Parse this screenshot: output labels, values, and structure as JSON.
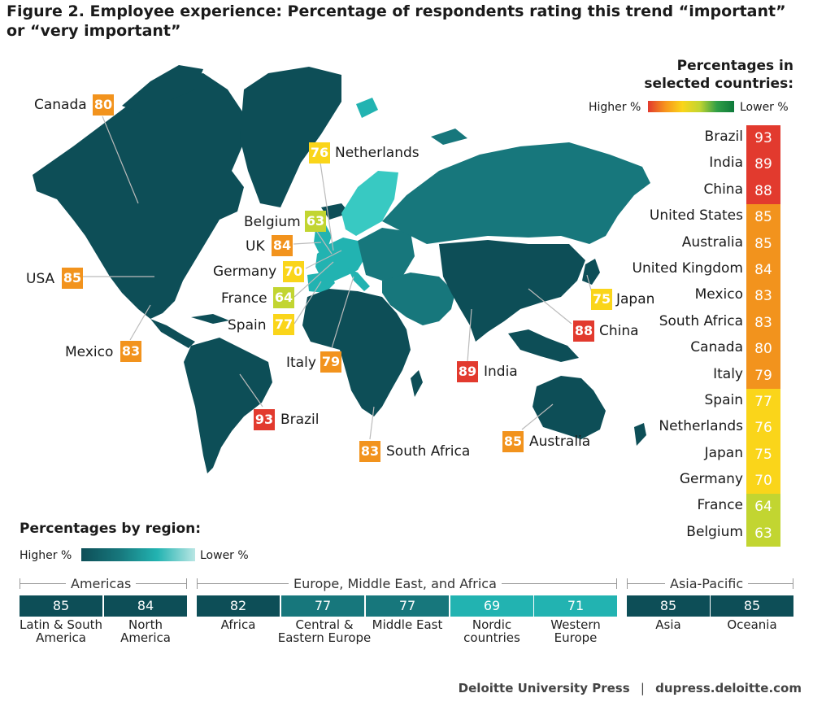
{
  "title_line1": "Figure 2. Employee experience: Percentage of respondents rating this trend “important”",
  "title_line2": " or “very important”",
  "selected": {
    "title_line1": "Percentages in",
    "title_line2": "selected countries:",
    "legend_high": "Higher %",
    "legend_low": "Lower %"
  },
  "region_section": {
    "title": "Percentages by region:",
    "legend_high": "Higher %",
    "legend_low": "Lower %"
  },
  "map_callouts": [
    {
      "name": "Canada",
      "value": "80"
    },
    {
      "name": "Netherlands",
      "value": "76"
    },
    {
      "name": "Belgium",
      "value": "63"
    },
    {
      "name": "UK",
      "value": "84"
    },
    {
      "name": "Germany",
      "value": "70"
    },
    {
      "name": "USA",
      "value": "85"
    },
    {
      "name": "France",
      "value": "64"
    },
    {
      "name": "Spain",
      "value": "77"
    },
    {
      "name": "Japan",
      "value": "75"
    },
    {
      "name": "China",
      "value": "88"
    },
    {
      "name": "Mexico",
      "value": "83"
    },
    {
      "name": "Italy",
      "value": "79"
    },
    {
      "name": "India",
      "value": "89"
    },
    {
      "name": "Brazil",
      "value": "93"
    },
    {
      "name": "South Africa",
      "value": "83"
    },
    {
      "name": "Australia",
      "value": "85"
    }
  ],
  "colors": {
    "high": "#e23a2e",
    "orange": "#f2931d",
    "yellow": "#fad51a",
    "lime": "#c2d531",
    "map_dark": "#0d4e57",
    "map_mid": "#17777c",
    "map_light": "#22b3b1",
    "map_lightest": "#38c9c2"
  },
  "chart_data": {
    "type": "table",
    "title": "Figure 2. Employee experience: Percentage of respondents rating this trend “important” or “very important”",
    "countries": {
      "categories": [
        "Brazil",
        "India",
        "China",
        "United States",
        "Australia",
        "United Kingdom",
        "Mexico",
        "South Africa",
        "Canada",
        "Italy",
        "Spain",
        "Netherlands",
        "Japan",
        "Germany",
        "France",
        "Belgium"
      ],
      "values": [
        93,
        89,
        88,
        85,
        85,
        84,
        83,
        83,
        80,
        79,
        77,
        76,
        75,
        70,
        64,
        63
      ]
    },
    "regions": [
      {
        "group": "Americas",
        "items": [
          {
            "name": "Latin & South America",
            "value": 85
          },
          {
            "name": "North America",
            "value": 84
          }
        ]
      },
      {
        "group": "Europe, Middle East, and Africa",
        "items": [
          {
            "name": "Africa",
            "value": 82
          },
          {
            "name": "Central & Eastern Europe",
            "value": 77
          },
          {
            "name": "Middle East",
            "value": 77
          },
          {
            "name": "Nordic countries",
            "value": 69
          },
          {
            "name": "Western Europe",
            "value": 71
          }
        ]
      },
      {
        "group": "Asia-Pacific",
        "items": [
          {
            "name": "Asia",
            "value": 85
          },
          {
            "name": "Oceania",
            "value": 85
          }
        ]
      }
    ]
  },
  "region_labels": {
    "latam_1": "Latin & South",
    "latam_2": "America",
    "na_1": "North",
    "na_2": "America",
    "africa": "Africa",
    "cee_1": "Central &",
    "cee_2": "Eastern Europe",
    "me": "Middle East",
    "nordic_1": "Nordic",
    "nordic_2": "countries",
    "we_1": "Western",
    "we_2": "Europe",
    "asia": "Asia",
    "oceania": "Oceania"
  },
  "footer": {
    "publisher": "Deloitte University Press",
    "separator": "|",
    "url": "dupress.deloitte.com"
  }
}
